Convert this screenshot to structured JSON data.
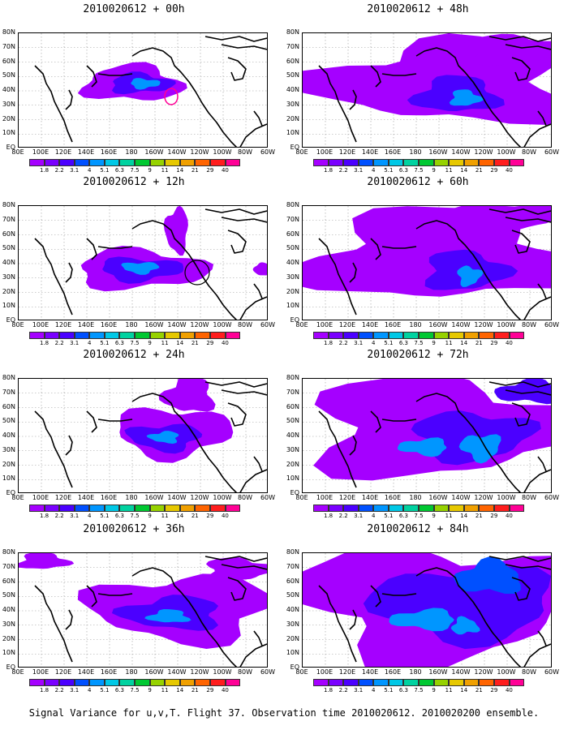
{
  "caption": "Signal Variance for u,v,T. Flight 37. Observation time 2010020612. 2010020200 ensemble.",
  "lat_labels": [
    "80N",
    "70N",
    "60N",
    "50N",
    "40N",
    "30N",
    "20N",
    "10N",
    "EQ"
  ],
  "lon_labels": [
    "80E",
    "100E",
    "120E",
    "140E",
    "160E",
    "180",
    "160W",
    "140W",
    "120W",
    "100W",
    "80W",
    "60W"
  ],
  "colorbar": {
    "labels": [
      "1.8",
      "2.2",
      "3.1",
      "4",
      "5.1",
      "6.3",
      "7.5",
      "9",
      "11",
      "14",
      "21",
      "29",
      "40"
    ],
    "colors": [
      "#a500ff",
      "#7a00ff",
      "#4b00ff",
      "#0050ff",
      "#0096ff",
      "#00c8e6",
      "#00d2a0",
      "#00c832",
      "#96d200",
      "#e6c800",
      "#f0a000",
      "#ff6400",
      "#ff1e1e",
      "#ff0096"
    ]
  },
  "panels": [
    {
      "title": "2010020612 + 00h"
    },
    {
      "title": "2010020612 + 12h"
    },
    {
      "title": "2010020612 + 24h"
    },
    {
      "title": "2010020612 + 36h"
    },
    {
      "title": "2010020612 + 48h"
    },
    {
      "title": "2010020612 + 60h"
    },
    {
      "title": "2010020612 + 72h"
    },
    {
      "title": "2010020612 + 84h"
    }
  ]
}
